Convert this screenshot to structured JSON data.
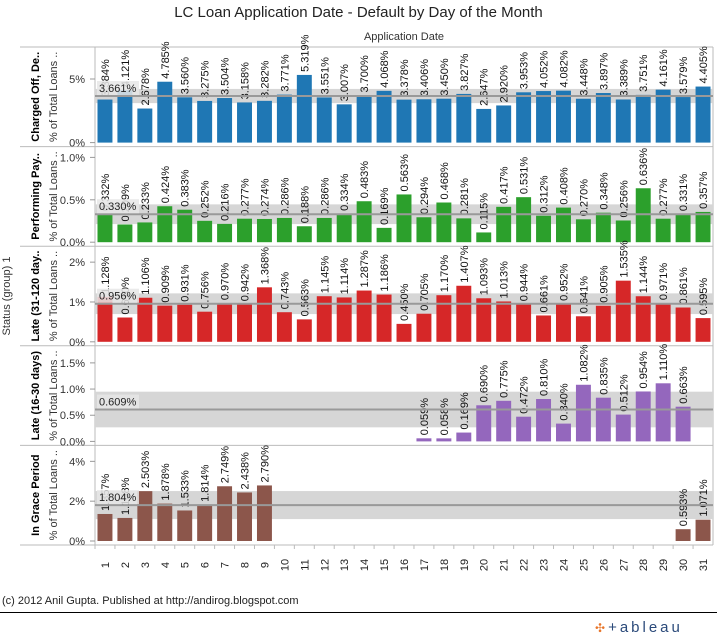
{
  "footer": {
    "credit": "(c) 2012 Anil Gupta. Published at http://andirog.blogspot.com",
    "logo_text": "+ableau",
    "logo_icon": "tableau-cross-icon"
  },
  "chart_data": {
    "type": "bar",
    "title": "LC Loan Application Date - Default by Day of the Month",
    "column_header": "Application Date",
    "row_group_label": "Status (group) 1",
    "measure_label": "% of Total Loans ..",
    "x": [
      "1",
      "2",
      "3",
      "4",
      "5",
      "6",
      "7",
      "8",
      "9",
      "10",
      "11",
      "12",
      "13",
      "14",
      "15",
      "16",
      "17",
      "18",
      "19",
      "20",
      "21",
      "22",
      "23",
      "24",
      "25",
      "26",
      "27",
      "28",
      "29",
      "30",
      "31"
    ],
    "series": [
      {
        "name": "Charged Off, De..",
        "color": "#1f77b4",
        "average": 3.661,
        "average_label": "3.661%",
        "ticks": [
          "0%",
          "5%"
        ],
        "tick_values": [
          0,
          5
        ],
        "ylim": [
          0,
          7.2
        ],
        "values": [
          3.384,
          4.121,
          2.678,
          4.785,
          3.56,
          3.275,
          3.504,
          3.158,
          3.282,
          3.771,
          5.319,
          3.551,
          3.007,
          3.7,
          4.068,
          3.378,
          3.406,
          3.45,
          3.827,
          2.647,
          2.92,
          3.953,
          4.052,
          4.082,
          3.448,
          3.897,
          3.389,
          3.751,
          4.161,
          3.579,
          4.405
        ]
      },
      {
        "name": "Performing Pay..",
        "color": "#2ca02c",
        "average": 0.33,
        "average_label": "0.330%",
        "ticks": [
          "0.0%",
          "0.5%",
          "1.0%"
        ],
        "tick_values": [
          0,
          0.5,
          1.0
        ],
        "ylim": [
          0,
          1.08
        ],
        "values": [
          0.332,
          0.209,
          0.233,
          0.424,
          0.383,
          0.252,
          0.216,
          0.277,
          0.274,
          0.286,
          0.188,
          0.286,
          0.334,
          0.483,
          0.169,
          0.563,
          0.294,
          0.468,
          0.281,
          0.115,
          0.417,
          0.531,
          0.312,
          0.408,
          0.27,
          0.348,
          0.256,
          0.636,
          0.277,
          0.331,
          0.357
        ]
      },
      {
        "name": "Late (31-120 day..",
        "color": "#d62728",
        "average": 0.956,
        "average_label": "0.956%",
        "ticks": [
          "0%",
          "1%",
          "2%"
        ],
        "tick_values": [
          0,
          1,
          2
        ],
        "ylim": [
          0,
          2.3
        ],
        "values": [
          1.128,
          0.61,
          1.106,
          0.909,
          0.931,
          0.756,
          0.97,
          0.942,
          1.368,
          0.743,
          0.563,
          1.145,
          1.114,
          1.287,
          1.186,
          0.45,
          0.705,
          1.17,
          1.407,
          1.093,
          1.013,
          0.944,
          0.661,
          0.952,
          0.641,
          0.905,
          1.535,
          1.144,
          0.971,
          0.861,
          0.595
        ]
      },
      {
        "name": "Late (16-30 days)",
        "color": "#9467bd",
        "average": 0.609,
        "average_label": "0.609%",
        "ticks": [
          "0.0%",
          "0.5%",
          "1.0%",
          "1.5%"
        ],
        "tick_values": [
          0,
          0.5,
          1.0,
          1.5
        ],
        "ylim": [
          0,
          1.75
        ],
        "values": [
          null,
          null,
          null,
          null,
          null,
          null,
          null,
          null,
          null,
          null,
          null,
          null,
          null,
          null,
          null,
          null,
          0.059,
          0.058,
          0.169,
          0.69,
          0.775,
          0.472,
          0.81,
          0.34,
          1.082,
          0.835,
          0.512,
          0.954,
          1.11,
          0.663,
          null
        ]
      },
      {
        "name": "In Grace Period",
        "color": "#8c564b",
        "average": 1.804,
        "average_label": "1.804%",
        "ticks": [
          "0%",
          "2%",
          "4%"
        ],
        "tick_values": [
          0,
          2,
          4
        ],
        "ylim": [
          0,
          4.6
        ],
        "values": [
          1.357,
          1.158,
          2.503,
          1.878,
          1.533,
          1.814,
          2.749,
          2.438,
          2.79,
          null,
          null,
          null,
          null,
          null,
          null,
          null,
          null,
          null,
          null,
          null,
          null,
          null,
          null,
          null,
          null,
          null,
          null,
          null,
          null,
          0.593,
          1.071
        ]
      }
    ],
    "reference_band": "average line with distribution band",
    "grid": false
  }
}
